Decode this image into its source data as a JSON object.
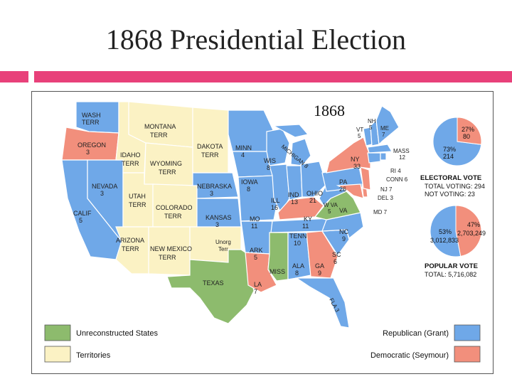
{
  "slide": {
    "title": "1868 Presidential Election"
  },
  "map": {
    "year": "1868",
    "colors": {
      "republican": "#6fa8e8",
      "democratic": "#f28f7c",
      "unreconstructed": "#8dbb6d",
      "territory": "#fbf2c4"
    },
    "labels": {
      "wash": [
        "WASH",
        "TERR"
      ],
      "oregon": [
        "OREGON",
        "3"
      ],
      "idaho": [
        "IDAHO",
        "TERR"
      ],
      "montana": [
        "MONTANA",
        "TERR"
      ],
      "wyoming": [
        "WYOMING",
        "TERR"
      ],
      "dakota": [
        "DAKOTA",
        "TERR"
      ],
      "nevada": [
        "NEVADA",
        "3"
      ],
      "utah": [
        "UTAH",
        "TERR"
      ],
      "colorado": [
        "COLORADO",
        "TERR"
      ],
      "calif": [
        "CALIF",
        "5"
      ],
      "arizona": [
        "ARIZONA",
        "TERR"
      ],
      "newmexico": [
        "NEW MEXICO",
        "TERR"
      ],
      "nebraska": [
        "NEBRASKA",
        "3"
      ],
      "kansas": [
        "KANSAS",
        "3"
      ],
      "unorg": [
        "Unorg",
        "Terr"
      ],
      "texas": "TEXAS",
      "minn": [
        "MINN",
        "4"
      ],
      "iowa": [
        "IOWA",
        "8"
      ],
      "mo": [
        "MO",
        "11"
      ],
      "ark": [
        "ARK",
        "5"
      ],
      "la": [
        "LA",
        "7"
      ],
      "wis": [
        "WIS",
        "8"
      ],
      "mich": "MICHIGAN 8",
      "ill": [
        "ILL",
        "16"
      ],
      "ind": [
        "IND",
        "13"
      ],
      "ohio": [
        "OHIO",
        "21"
      ],
      "ky": [
        "KY",
        "11"
      ],
      "tenn": [
        "TENN",
        "10"
      ],
      "miss": "MISS",
      "ala": [
        "ALA",
        "8"
      ],
      "ga": [
        "GA",
        "9"
      ],
      "fla": "FLA 3",
      "sc": [
        "SC",
        "6"
      ],
      "nc": [
        "NC",
        "9"
      ],
      "va": "VA",
      "wva": [
        "W VA",
        "5"
      ],
      "pa": [
        "PA",
        "26"
      ],
      "ny": [
        "NY",
        "33"
      ],
      "vt": [
        "VT",
        "5"
      ],
      "nh": [
        "NH",
        "5"
      ],
      "me": [
        "ME",
        "7"
      ],
      "mass": [
        "MASS",
        "12"
      ],
      "ri": "RI 4",
      "conn": "CONN 6",
      "nj": "NJ 7",
      "del": "DEL 3",
      "md": "MD 7"
    }
  },
  "electoral_vote": {
    "heading": "ELECTORAL VOTE",
    "total_voting": "TOTAL VOTING: 294",
    "not_voting": "NOT VOTING: 23",
    "rep_pct_label": "73%",
    "rep_value_label": "214",
    "dem_pct_label": "27%",
    "dem_value_label": "80",
    "rep_fraction": 0.73,
    "dem_fraction": 0.27
  },
  "popular_vote": {
    "heading": "POPULAR VOTE",
    "total": "TOTAL: 5,716,082",
    "rep_pct_label": "53%",
    "rep_value_label": "3,012,833",
    "dem_pct_label": "47%",
    "dem_value_label": "2,703,249",
    "rep_fraction": 0.53,
    "dem_fraction": 0.47
  },
  "legend": {
    "unreconstructed": "Unreconstructed States",
    "territories": "Territories",
    "republican": "Republican (Grant)",
    "democratic": "Democratic (Seymour)"
  }
}
